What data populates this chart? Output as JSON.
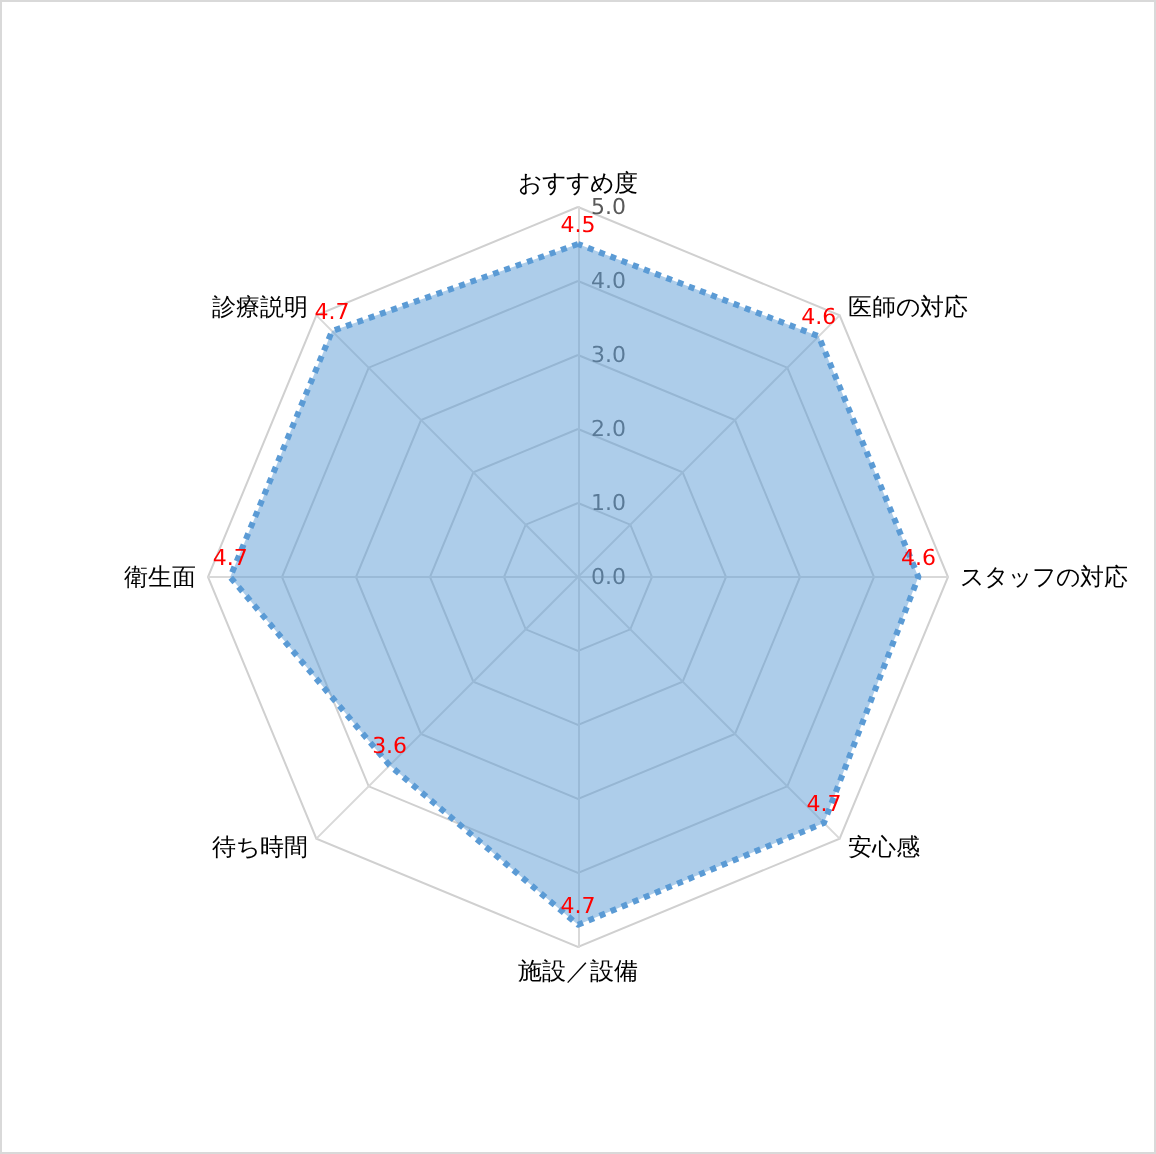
{
  "chart_data": {
    "type": "radar",
    "categories": [
      "おすすめ度",
      "医師の対応",
      "スタッフの対応",
      "安心感",
      "施設／設備",
      "待ち時間",
      "衛生面",
      "診療説明"
    ],
    "series": [
      {
        "color": "#5b9bd5",
        "values": [
          4.5,
          4.6,
          4.6,
          4.7,
          4.7,
          3.6,
          4.7,
          4.7
        ]
      }
    ],
    "ylim": [
      0,
      5
    ],
    "yticks": [
      {
        "value": 0,
        "label": "0.0"
      },
      {
        "value": 1,
        "label": "1.0"
      },
      {
        "value": 2,
        "label": "2.0"
      },
      {
        "value": 3,
        "label": "3.0"
      },
      {
        "value": 4,
        "label": "4.0"
      },
      {
        "value": 5,
        "label": "5.0"
      }
    ],
    "data_labels": true,
    "line_style": "dotted",
    "marker": "none"
  }
}
